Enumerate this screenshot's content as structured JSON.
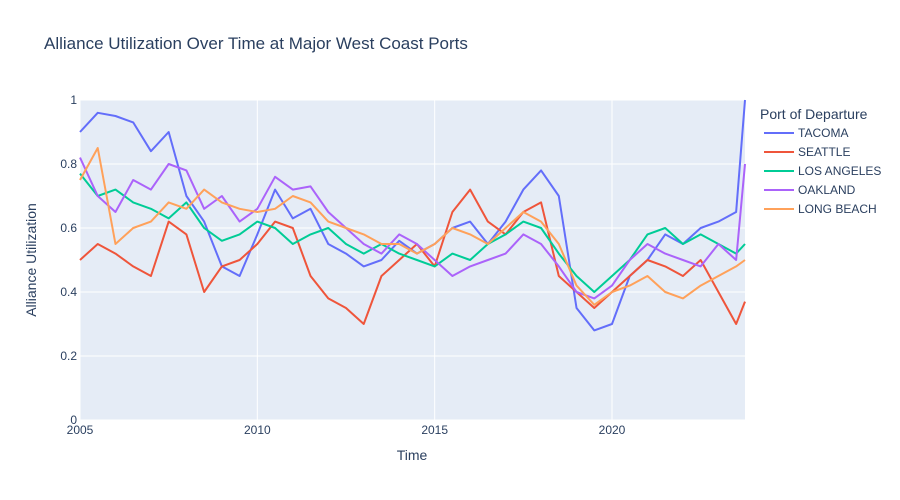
{
  "chart_data": {
    "type": "line",
    "title": "Alliance Utilization Over Time at Major West Coast Ports",
    "xlabel": "Time",
    "ylabel": "Alliance Utilization",
    "xlim": [
      2005.0,
      2023.75
    ],
    "ylim": [
      0,
      1
    ],
    "x_ticks": [
      2005,
      2010,
      2015,
      2020
    ],
    "y_ticks": [
      0,
      0.2,
      0.4,
      0.6,
      0.8,
      1
    ],
    "grid": true,
    "legend": {
      "title": "Port of Departure",
      "placement": "right"
    },
    "x": [
      2005.0,
      2005.5,
      2006.0,
      2006.5,
      2007.0,
      2007.5,
      2008.0,
      2008.5,
      2009.0,
      2009.5,
      2010.0,
      2010.5,
      2011.0,
      2011.5,
      2012.0,
      2012.5,
      2013.0,
      2013.5,
      2014.0,
      2014.5,
      2015.0,
      2015.5,
      2016.0,
      2016.5,
      2017.0,
      2017.5,
      2018.0,
      2018.5,
      2019.0,
      2019.5,
      2020.0,
      2020.5,
      2021.0,
      2021.5,
      2022.0,
      2022.5,
      2023.0,
      2023.5,
      2023.75
    ],
    "series": [
      {
        "name": "TACOMA",
        "color": "#636efa",
        "values": [
          0.9,
          0.96,
          0.95,
          0.93,
          0.84,
          0.9,
          0.7,
          0.62,
          0.48,
          0.45,
          0.58,
          0.72,
          0.63,
          0.66,
          0.55,
          0.52,
          0.48,
          0.5,
          0.56,
          0.52,
          0.55,
          0.6,
          0.62,
          0.55,
          0.62,
          0.72,
          0.78,
          0.7,
          0.35,
          0.28,
          0.3,
          0.45,
          0.5,
          0.58,
          0.55,
          0.6,
          0.62,
          0.65,
          1.0
        ]
      },
      {
        "name": "SEATTLE",
        "color": "#ef553b",
        "values": [
          0.5,
          0.55,
          0.52,
          0.48,
          0.45,
          0.62,
          0.58,
          0.4,
          0.48,
          0.5,
          0.55,
          0.62,
          0.6,
          0.45,
          0.38,
          0.35,
          0.3,
          0.45,
          0.5,
          0.55,
          0.48,
          0.65,
          0.72,
          0.62,
          0.58,
          0.65,
          0.68,
          0.45,
          0.4,
          0.35,
          0.4,
          0.45,
          0.5,
          0.48,
          0.45,
          0.5,
          0.4,
          0.3,
          0.37
        ]
      },
      {
        "name": "LOS ANGELES",
        "color": "#00cc96",
        "values": [
          0.77,
          0.7,
          0.72,
          0.68,
          0.66,
          0.63,
          0.68,
          0.6,
          0.56,
          0.58,
          0.62,
          0.6,
          0.55,
          0.58,
          0.6,
          0.55,
          0.52,
          0.55,
          0.52,
          0.5,
          0.48,
          0.52,
          0.5,
          0.55,
          0.58,
          0.62,
          0.6,
          0.52,
          0.45,
          0.4,
          0.45,
          0.5,
          0.58,
          0.6,
          0.55,
          0.58,
          0.55,
          0.52,
          0.55
        ]
      },
      {
        "name": "OAKLAND",
        "color": "#ab63fa",
        "values": [
          0.82,
          0.7,
          0.65,
          0.75,
          0.72,
          0.8,
          0.78,
          0.66,
          0.7,
          0.62,
          0.66,
          0.76,
          0.72,
          0.73,
          0.65,
          0.6,
          0.55,
          0.52,
          0.58,
          0.55,
          0.5,
          0.45,
          0.48,
          0.5,
          0.52,
          0.58,
          0.55,
          0.48,
          0.4,
          0.38,
          0.42,
          0.5,
          0.55,
          0.52,
          0.5,
          0.48,
          0.55,
          0.5,
          0.8
        ]
      },
      {
        "name": "LONG BEACH",
        "color": "#ffa15a",
        "values": [
          0.75,
          0.85,
          0.55,
          0.6,
          0.62,
          0.68,
          0.66,
          0.72,
          0.68,
          0.66,
          0.65,
          0.66,
          0.7,
          0.68,
          0.62,
          0.6,
          0.58,
          0.55,
          0.55,
          0.52,
          0.55,
          0.6,
          0.58,
          0.55,
          0.6,
          0.65,
          0.62,
          0.55,
          0.42,
          0.36,
          0.4,
          0.42,
          0.45,
          0.4,
          0.38,
          0.42,
          0.45,
          0.48,
          0.5
        ]
      }
    ]
  }
}
